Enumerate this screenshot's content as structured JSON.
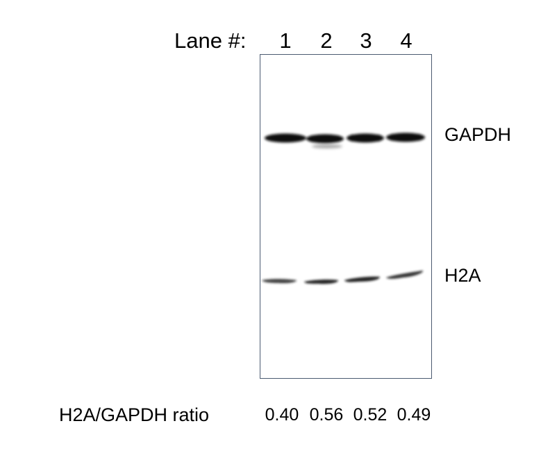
{
  "header": {
    "lane_label": "Lane #:",
    "lanes": [
      "1",
      "2",
      "3",
      "4"
    ]
  },
  "bands": [
    {
      "label": "GAPDH",
      "lane_intensity": [
        0.95,
        0.95,
        0.95,
        0.95
      ]
    },
    {
      "label": "H2A",
      "lane_intensity": [
        0.4,
        0.56,
        0.52,
        0.49
      ]
    }
  ],
  "ratio": {
    "label": "H2A/GAPDH ratio",
    "values": [
      "0.40",
      "0.56",
      "0.52",
      "0.49"
    ]
  },
  "colors": {
    "frame": "#4a5a70",
    "band": "#111111"
  }
}
